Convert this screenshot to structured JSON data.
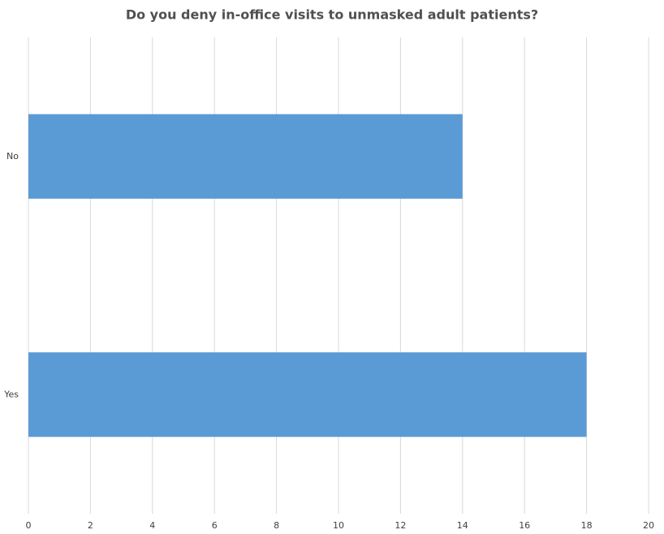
{
  "chart_data": {
    "type": "bar",
    "orientation": "horizontal",
    "title": "Do you deny in-office visits to unmasked adult patients?",
    "categories": [
      "No",
      "Yes"
    ],
    "values": [
      14,
      18
    ],
    "color": "#5b9bd5",
    "xlim": [
      0,
      20
    ],
    "xticks": [
      0,
      2,
      4,
      6,
      8,
      10,
      12,
      14,
      16,
      18,
      20
    ],
    "grid": true
  }
}
